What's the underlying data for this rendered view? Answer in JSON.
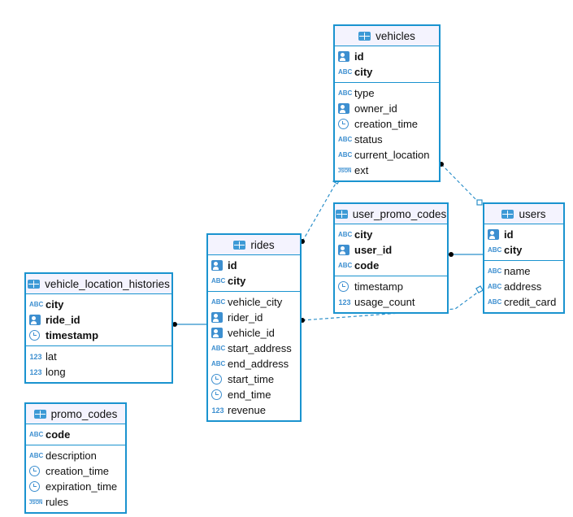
{
  "tables": [
    {
      "name": "vehicles",
      "sections": [
        [
          {
            "n": "id",
            "t": "key",
            "pk": true
          },
          {
            "n": "city",
            "t": "abc",
            "pk": true
          }
        ],
        [
          {
            "n": "type",
            "t": "abc"
          },
          {
            "n": "owner_id",
            "t": "key"
          },
          {
            "n": "creation_time",
            "t": "clock"
          },
          {
            "n": "status",
            "t": "abc"
          },
          {
            "n": "current_location",
            "t": "abc"
          },
          {
            "n": "ext",
            "t": "json"
          }
        ]
      ]
    },
    {
      "name": "users",
      "sections": [
        [
          {
            "n": "id",
            "t": "key",
            "pk": true
          },
          {
            "n": "city",
            "t": "abc",
            "pk": true
          }
        ],
        [
          {
            "n": "name",
            "t": "abc"
          },
          {
            "n": "address",
            "t": "abc"
          },
          {
            "n": "credit_card",
            "t": "abc"
          }
        ]
      ]
    },
    {
      "name": "user_promo_codes",
      "sections": [
        [
          {
            "n": "city",
            "t": "abc",
            "pk": true
          },
          {
            "n": "user_id",
            "t": "key",
            "pk": true
          },
          {
            "n": "code",
            "t": "abc",
            "pk": true
          }
        ],
        [
          {
            "n": "timestamp",
            "t": "clock"
          },
          {
            "n": "usage_count",
            "t": "num"
          }
        ]
      ]
    },
    {
      "name": "rides",
      "sections": [
        [
          {
            "n": "id",
            "t": "key",
            "pk": true
          },
          {
            "n": "city",
            "t": "abc",
            "pk": true
          }
        ],
        [
          {
            "n": "vehicle_city",
            "t": "abc"
          },
          {
            "n": "rider_id",
            "t": "key"
          },
          {
            "n": "vehicle_id",
            "t": "key"
          },
          {
            "n": "start_address",
            "t": "abc"
          },
          {
            "n": "end_address",
            "t": "abc"
          },
          {
            "n": "start_time",
            "t": "clock"
          },
          {
            "n": "end_time",
            "t": "clock"
          },
          {
            "n": "revenue",
            "t": "num"
          }
        ]
      ]
    },
    {
      "name": "vehicle_location_histories",
      "sections": [
        [
          {
            "n": "city",
            "t": "abc",
            "pk": true
          },
          {
            "n": "ride_id",
            "t": "key",
            "pk": true
          },
          {
            "n": "timestamp",
            "t": "clock",
            "pk": true
          }
        ],
        [
          {
            "n": "lat",
            "t": "num"
          },
          {
            "n": "long",
            "t": "num"
          }
        ]
      ]
    },
    {
      "name": "promo_codes",
      "sections": [
        [
          {
            "n": "code",
            "t": "abc",
            "pk": true
          }
        ],
        [
          {
            "n": "description",
            "t": "abc"
          },
          {
            "n": "creation_time",
            "t": "clock"
          },
          {
            "n": "expiration_time",
            "t": "clock"
          },
          {
            "n": "rules",
            "t": "json"
          }
        ]
      ]
    }
  ],
  "type_labels": {
    "abc": "ABC",
    "num": "123",
    "json": "JSON"
  },
  "colors": {
    "border": "#1a93cf",
    "header_bg": "#f4f3fe",
    "link": "#2b8fc9"
  }
}
